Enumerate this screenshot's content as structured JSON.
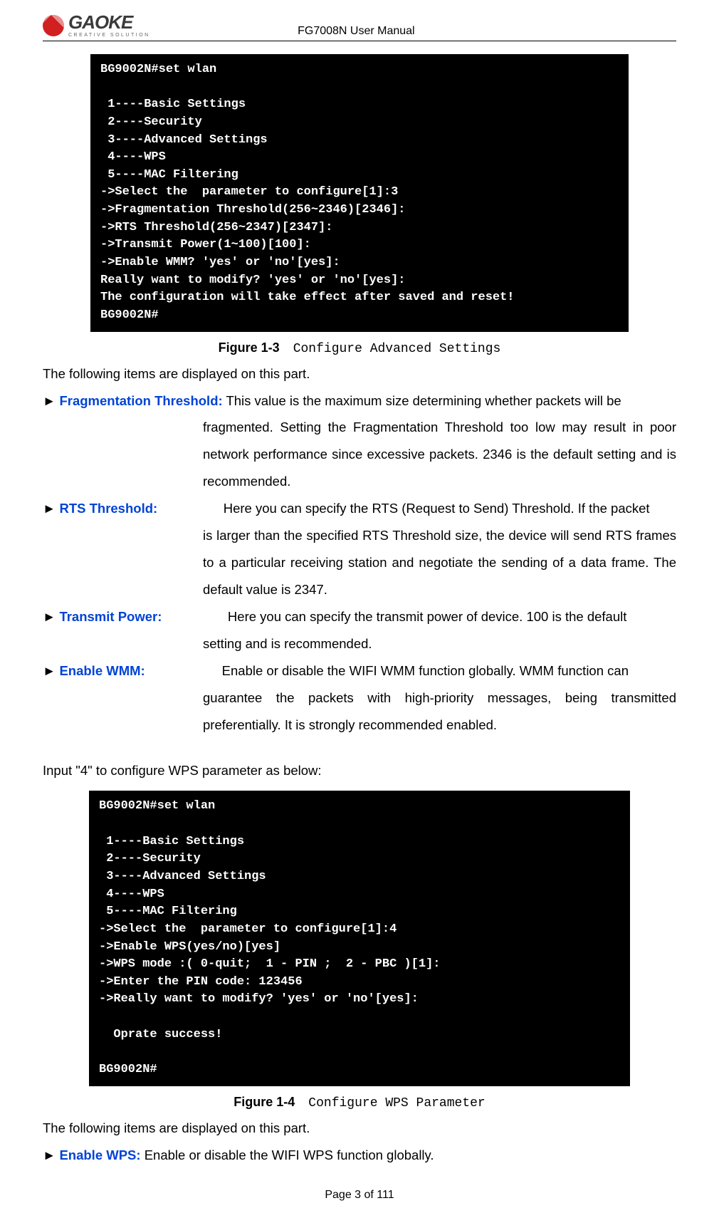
{
  "header": {
    "logo_main": "GAOKE",
    "logo_sub": "CREATIVE SOLUTION",
    "title": "FG7008N User Manual"
  },
  "terminal1_lines": [
    "BG9002N#set wlan",
    "",
    " 1----Basic Settings",
    " 2----Security",
    " 3----Advanced Settings",
    " 4----WPS",
    " 5----MAC Filtering",
    "->Select the  parameter to configure[1]:3",
    "->Fragmentation Threshold(256~2346)[2346]:",
    "->RTS Threshold(256~2347)[2347]:",
    "->Transmit Power(1~100)[100]:",
    "->Enable WMM? 'yes' or 'no'[yes]:",
    "Really want to modify? 'yes' or 'no'[yes]:",
    "The configuration will take effect after saved and reset!",
    "BG9002N#"
  ],
  "figure1": {
    "label": "Figure 1-3",
    "title": "Configure Advanced Settings"
  },
  "intro1": "The following items are displayed on this part.",
  "params1": [
    {
      "label": "Fragmentation Threshold:",
      "first": " This value is the maximum size determining whether packets will be",
      "rest": "fragmented. Setting the Fragmentation Threshold too low may result in poor network performance since excessive packets. 2346 is the default setting and is recommended.",
      "pad": ""
    },
    {
      "label": "RTS Threshold:",
      "first": "Here you can specify the RTS (Request to Send) Threshold. If the packet",
      "rest": "is larger than the specified RTS Threshold size, the device will send RTS frames to a particular receiving station and negotiate the sending of a data frame. The default value is 2347.",
      "pad": "                  "
    },
    {
      "label": "Transmit Power:",
      "first": " Here you can specify the transmit power of device. 100 is the default",
      "rest": "setting and is recommended.",
      "pad": "                 "
    },
    {
      "label": "Enable WMM:",
      "first": "Enable or disable the WIFI WMM function globally. WMM function can",
      "rest": "guarantee the packets with high-priority messages, being transmitted preferentially. It is strongly recommended enabled.",
      "pad": "                     "
    }
  ],
  "bridge_text": "Input \"4\" to configure WPS parameter as below:",
  "terminal2_lines": [
    "BG9002N#set wlan",
    "",
    " 1----Basic Settings",
    " 2----Security",
    " 3----Advanced Settings",
    " 4----WPS",
    " 5----MAC Filtering",
    "->Select the  parameter to configure[1]:4",
    "->Enable WPS(yes/no)[yes]",
    "->WPS mode :( 0-quit;  1 - PIN ;  2 - PBC )[1]:",
    "->Enter the PIN code: 123456",
    "->Really want to modify? 'yes' or 'no'[yes]:",
    "",
    "  Oprate success!",
    "",
    "BG9002N#"
  ],
  "figure2": {
    "label": "Figure 1-4",
    "title": "Configure WPS Parameter"
  },
  "intro2": "The following items are displayed on this part.",
  "params2": [
    {
      "label": "Enable WPS:",
      "first": " Enable or disable the WIFI WPS function globally.",
      "rest": "",
      "pad": ""
    }
  ],
  "footer": "Page 3 of 111",
  "colors": {
    "param_label": "#0043d6",
    "terminal_bg": "#000000",
    "terminal_fg": "#ffffff",
    "text": "#000000",
    "logo_red": "#d02020"
  }
}
